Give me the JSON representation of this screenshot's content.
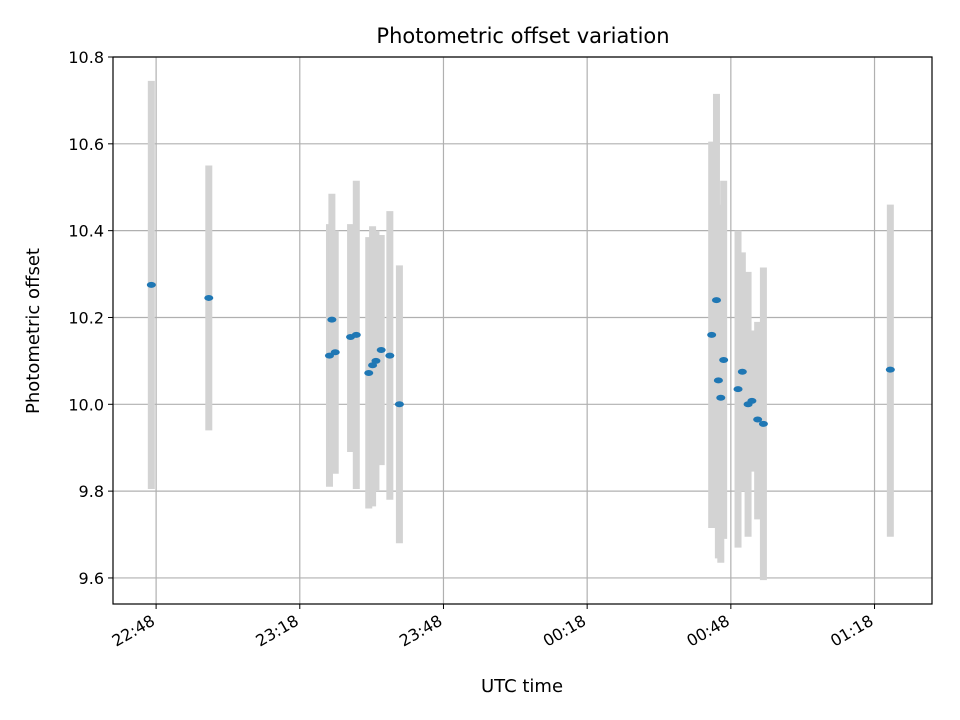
{
  "chart_data": {
    "type": "scatter",
    "title": "Photometric offset variation",
    "xlabel": "UTC time",
    "ylabel": "Photometric offset",
    "x_unit": "UTC time (HH:MM)",
    "xlim": [
      "22:39",
      "01:30"
    ],
    "ylim": [
      9.54,
      10.8
    ],
    "x_ticks": [
      "22:48",
      "23:18",
      "23:48",
      "00:18",
      "00:48",
      "01:18"
    ],
    "y_ticks": [
      "9.6",
      "9.8",
      "10.0",
      "10.2",
      "10.4",
      "10.6",
      "10.8"
    ],
    "grid": true,
    "colors": {
      "points": "#1f77b4",
      "error_bars": "#d3d3d3",
      "grid": "#b0b0b0"
    },
    "points": [
      {
        "x": "22:47:00",
        "y": 10.275,
        "ylow": 9.805,
        "yhigh": 10.745
      },
      {
        "x": "22:59:00",
        "y": 10.245,
        "ylow": 9.94,
        "yhigh": 10.55
      },
      {
        "x": "23:24:12",
        "y": 10.112,
        "ylow": 9.81,
        "yhigh": 10.415
      },
      {
        "x": "23:24:42",
        "y": 10.195,
        "ylow": 9.9,
        "yhigh": 10.485
      },
      {
        "x": "23:25:24",
        "y": 10.12,
        "ylow": 9.84,
        "yhigh": 10.4
      },
      {
        "x": "23:28:36",
        "y": 10.155,
        "ylow": 9.89,
        "yhigh": 10.415
      },
      {
        "x": "23:29:48",
        "y": 10.16,
        "ylow": 9.805,
        "yhigh": 10.515
      },
      {
        "x": "23:32:24",
        "y": 10.072,
        "ylow": 9.76,
        "yhigh": 10.385
      },
      {
        "x": "23:33:12",
        "y": 10.09,
        "ylow": 9.765,
        "yhigh": 10.41
      },
      {
        "x": "23:33:54",
        "y": 10.1,
        "ylow": 9.8,
        "yhigh": 10.4
      },
      {
        "x": "23:35:00",
        "y": 10.125,
        "ylow": 9.86,
        "yhigh": 10.39
      },
      {
        "x": "23:36:48",
        "y": 10.112,
        "ylow": 9.78,
        "yhigh": 10.445
      },
      {
        "x": "23:38:48",
        "y": 10.0,
        "ylow": 9.68,
        "yhigh": 10.32
      },
      {
        "x": "00:44:00",
        "y": 10.16,
        "ylow": 9.715,
        "yhigh": 10.605
      },
      {
        "x": "00:45:00",
        "y": 10.24,
        "ylow": 9.77,
        "yhigh": 10.715
      },
      {
        "x": "00:45:24",
        "y": 10.055,
        "ylow": 9.645,
        "yhigh": 10.46
      },
      {
        "x": "00:45:54",
        "y": 10.015,
        "ylow": 9.635,
        "yhigh": 10.395
      },
      {
        "x": "00:46:30",
        "y": 10.102,
        "ylow": 9.69,
        "yhigh": 10.515
      },
      {
        "x": "00:49:30",
        "y": 10.035,
        "ylow": 9.67,
        "yhigh": 10.4
      },
      {
        "x": "00:50:24",
        "y": 10.075,
        "ylow": 9.8,
        "yhigh": 10.35
      },
      {
        "x": "00:51:36",
        "y": 10.0,
        "ylow": 9.695,
        "yhigh": 10.305
      },
      {
        "x": "00:52:24",
        "y": 10.008,
        "ylow": 9.845,
        "yhigh": 10.17
      },
      {
        "x": "00:53:36",
        "y": 9.965,
        "ylow": 9.735,
        "yhigh": 10.19
      },
      {
        "x": "00:54:48",
        "y": 9.955,
        "ylow": 9.595,
        "yhigh": 10.315
      },
      {
        "x": "01:21:18",
        "y": 10.08,
        "ylow": 9.695,
        "yhigh": 10.46
      }
    ]
  }
}
